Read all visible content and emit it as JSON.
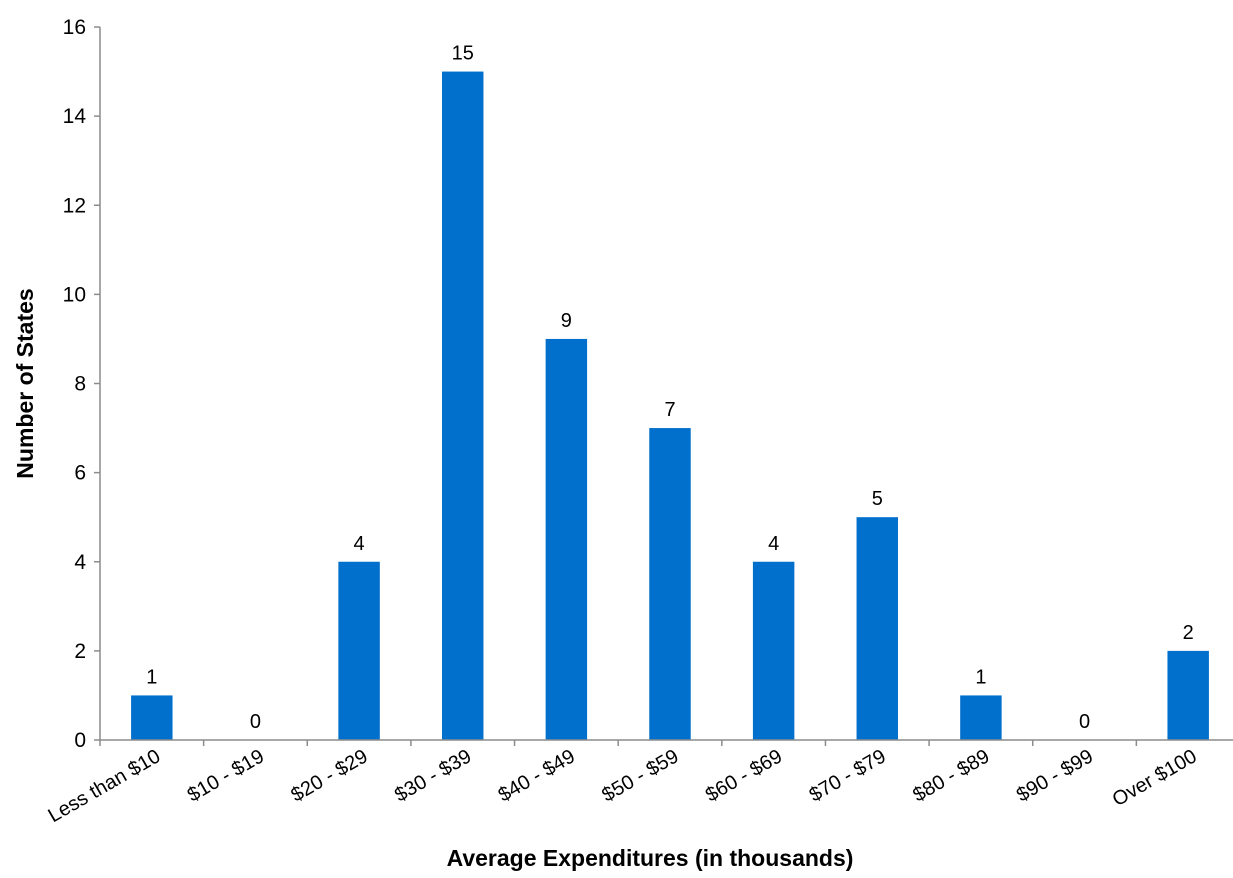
{
  "chart_data": {
    "type": "bar",
    "title": "",
    "xlabel": "Average Expenditures (in thousands)",
    "ylabel": "Number of States",
    "categories": [
      "Less than $10",
      "$10 - $19",
      "$20 - $29",
      "$30 - $39",
      "$40 - $49",
      "$50 - $59",
      "$60 - $69",
      "$70 - $79",
      "$80 - $89",
      "$90 - $99",
      "Over $100"
    ],
    "values": [
      1,
      0,
      4,
      15,
      9,
      7,
      4,
      5,
      1,
      0,
      2
    ],
    "ylim": [
      0,
      16
    ],
    "yticks": [
      0,
      2,
      4,
      6,
      8,
      10,
      12,
      14,
      16
    ],
    "bar_color": "#0070CC",
    "grid": false,
    "legend": "none",
    "data_labels": true
  }
}
